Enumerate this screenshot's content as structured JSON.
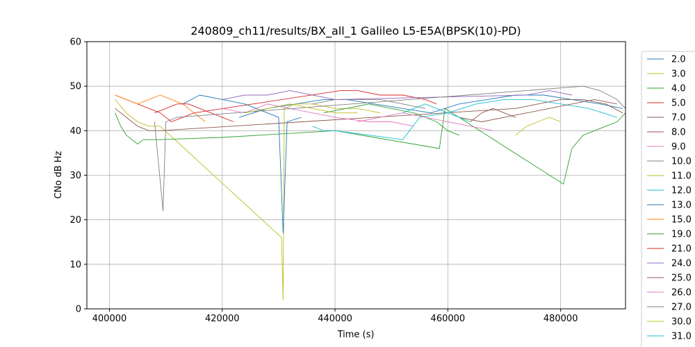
{
  "chart_data": {
    "type": "line",
    "title": "240809_ch11/results/BX_all_1 Galileo L5-E5A(BPSK(10)-PD)",
    "xlabel": "Time (s)",
    "ylabel": "CNo dB Hz",
    "xlim": [
      396000,
      491500
    ],
    "ylim": [
      0,
      60
    ],
    "xticks": [
      400000,
      420000,
      440000,
      460000,
      480000
    ],
    "xtick_labels": [
      "400000",
      "420000",
      "440000",
      "460000",
      "480000"
    ],
    "yticks": [
      0,
      10,
      20,
      30,
      40,
      50,
      60
    ],
    "ytick_labels": [
      "0",
      "10",
      "20",
      "30",
      "40",
      "50",
      "60"
    ],
    "grid": true,
    "legend_position": "right, outside plot (clipped at bottom)",
    "series": [
      {
        "name": "2.0",
        "color": "#1f77b4",
        "x": [
          423000,
          428000,
          433000,
          438000,
          442000,
          447000,
          452000,
          457000,
          462000,
          467000,
          472000,
          477000,
          482000,
          487000,
          491000
        ],
        "y": [
          43,
          45,
          46,
          47,
          47,
          46,
          45,
          44,
          46,
          47,
          48,
          48,
          47,
          46,
          45
        ]
      },
      {
        "name": "3.0",
        "color": "#bcbd22",
        "x": [
          401000,
          403000,
          405000,
          407000,
          409000,
          430500,
          430800,
          431000,
          433000,
          436000,
          440000,
          444000,
          448000
        ],
        "y": [
          47,
          44,
          42,
          41,
          41,
          16,
          2,
          45,
          46,
          46,
          45,
          45,
          44
        ]
      },
      {
        "name": "4.0",
        "color": "#2ca02c",
        "x": [
          401000,
          402000,
          403000,
          404000,
          405000,
          406000,
          407000,
          409000,
          420000,
          440000,
          458500,
          459500,
          480500,
          482000,
          484000,
          486000,
          488000,
          490000,
          491500
        ],
        "y": [
          44,
          41,
          39,
          38,
          37,
          38,
          38,
          38,
          38.5,
          40,
          36,
          45,
          28,
          36,
          39,
          40,
          41,
          42,
          44
        ]
      },
      {
        "name": "5.0",
        "color": "#d62728",
        "x": [
          401000,
          403000,
          405000,
          407000,
          409000,
          411000,
          413000,
          415000,
          441000,
          444000,
          448000,
          452000,
          456000,
          458000
        ],
        "y": [
          48,
          47,
          46,
          45,
          44,
          42,
          43,
          44,
          49,
          49,
          48,
          48,
          47,
          46
        ]
      },
      {
        "name": "7.0",
        "color": "#8c564b",
        "x": [
          401000,
          403000,
          405000,
          407000,
          409000,
          472000,
          476000,
          480000,
          484000,
          488000,
          491000
        ],
        "y": [
          45,
          43,
          41,
          40,
          40,
          45,
          46,
          47,
          47,
          46,
          44
        ]
      },
      {
        "name": "8.0",
        "color": "#8c564b",
        "x": [
          464000,
          466000,
          468000,
          470000,
          472000
        ],
        "y": [
          42,
          44,
          45,
          44,
          43
        ]
      },
      {
        "name": "9.0",
        "color": "#e377c2",
        "x": [
          420000,
          424000,
          428000,
          432000,
          436000,
          440000,
          446000,
          450000,
          454000
        ],
        "y": [
          45,
          44,
          46,
          45,
          44,
          43,
          42,
          42,
          41
        ]
      },
      {
        "name": "10.0",
        "color": "#7f7f7f",
        "x": [
          436000,
          440000,
          444000,
          448000,
          452000,
          456000
        ],
        "y": [
          46,
          47,
          47,
          47,
          46,
          45
        ]
      },
      {
        "name": "11.0",
        "color": "#bcbd22",
        "x": [
          472000,
          474000,
          476000,
          478000,
          480000
        ],
        "y": [
          39,
          41,
          42,
          43,
          42
        ]
      },
      {
        "name": "12.0",
        "color": "#17becf",
        "x": [
          436000,
          438000,
          440000,
          452000,
          455000,
          460000,
          465000,
          470000,
          475000,
          480000,
          485000,
          490000
        ],
        "y": [
          41,
          40,
          40,
          38,
          43,
          44,
          46,
          47,
          47,
          46,
          45,
          43
        ]
      },
      {
        "name": "13.0",
        "color": "#1f77b4",
        "x": [
          413000,
          416000,
          420000,
          424000,
          428000,
          430000,
          430800,
          431500,
          434000
        ],
        "y": [
          46,
          48,
          47,
          46,
          44,
          43,
          17,
          42,
          43
        ]
      },
      {
        "name": "15.0",
        "color": "#ff7f0e",
        "x": [
          401000,
          403000,
          405000,
          407000,
          409000,
          411000,
          413000,
          415000,
          417000
        ],
        "y": [
          48,
          47,
          46,
          47,
          48,
          47,
          46,
          44,
          42
        ]
      },
      {
        "name": "19.0",
        "color": "#2ca02c",
        "x": [
          438000,
          442000,
          446000,
          450000,
          454000,
          458000,
          460000,
          462000
        ],
        "y": [
          44,
          45,
          46,
          45,
          44,
          42,
          40,
          39
        ]
      },
      {
        "name": "21.0",
        "color": "#d62728",
        "x": [
          408000,
          410000,
          412000,
          414000,
          416000,
          418000,
          420000,
          422000
        ],
        "y": [
          44,
          45,
          46,
          46,
          45,
          44,
          43,
          42
        ]
      },
      {
        "name": "24.0",
        "color": "#9467bd",
        "x": [
          420000,
          424000,
          428000,
          432000,
          436000,
          440000,
          474000,
          478000,
          482000
        ],
        "y": [
          47,
          48,
          48,
          49,
          48,
          47,
          48,
          49,
          48
        ]
      },
      {
        "name": "25.0",
        "color": "#8c564b",
        "x": [
          462000,
          466000,
          470000,
          474000,
          478000,
          482000,
          486000,
          490000
        ],
        "y": [
          43,
          42,
          43,
          44,
          45,
          46,
          47,
          46
        ]
      },
      {
        "name": "26.0",
        "color": "#e377c2",
        "x": [
          444000,
          448000,
          452000,
          456000,
          460000,
          464000,
          468000
        ],
        "y": [
          42,
          43,
          44,
          43,
          42,
          41,
          40
        ]
      },
      {
        "name": "27.0",
        "color": "#7f7f7f",
        "x": [
          408000,
          409500,
          410000,
          412000,
          484000,
          487000,
          490000,
          491500
        ],
        "y": [
          42,
          22,
          42,
          43,
          50,
          49,
          47,
          45
        ]
      },
      {
        "name": "30.0",
        "color": "#bcbd22",
        "x": [
          424000,
          428000,
          432000,
          436000,
          440000,
          444000
        ],
        "y": [
          44,
          45,
          46,
          45,
          44,
          44
        ]
      },
      {
        "name": "31.0",
        "color": "#17becf",
        "x": [
          452000,
          454000,
          456000,
          458000,
          460000,
          462000,
          464000
        ],
        "y": [
          44,
          45,
          46,
          45,
          44,
          43,
          42
        ]
      }
    ]
  },
  "legend_items": [
    {
      "label": "2.0",
      "color": "#1f77b4"
    },
    {
      "label": "3.0",
      "color": "#bcbd22"
    },
    {
      "label": "4.0",
      "color": "#2ca02c"
    },
    {
      "label": "5.0",
      "color": "#d62728"
    },
    {
      "label": "7.0",
      "color": "#8c564b"
    },
    {
      "label": "8.0",
      "color": "#8c564b"
    },
    {
      "label": "9.0",
      "color": "#e377c2"
    },
    {
      "label": "10.0",
      "color": "#7f7f7f"
    },
    {
      "label": "11.0",
      "color": "#bcbd22"
    },
    {
      "label": "12.0",
      "color": "#17becf"
    },
    {
      "label": "13.0",
      "color": "#1f77b4"
    },
    {
      "label": "15.0",
      "color": "#ff7f0e"
    },
    {
      "label": "19.0",
      "color": "#2ca02c"
    },
    {
      "label": "21.0",
      "color": "#d62728"
    },
    {
      "label": "24.0",
      "color": "#9467bd"
    },
    {
      "label": "25.0",
      "color": "#8c564b"
    },
    {
      "label": "26.0",
      "color": "#e377c2"
    },
    {
      "label": "27.0",
      "color": "#7f7f7f"
    },
    {
      "label": "30.0",
      "color": "#bcbd22"
    },
    {
      "label": "31.0",
      "color": "#17becf"
    }
  ]
}
